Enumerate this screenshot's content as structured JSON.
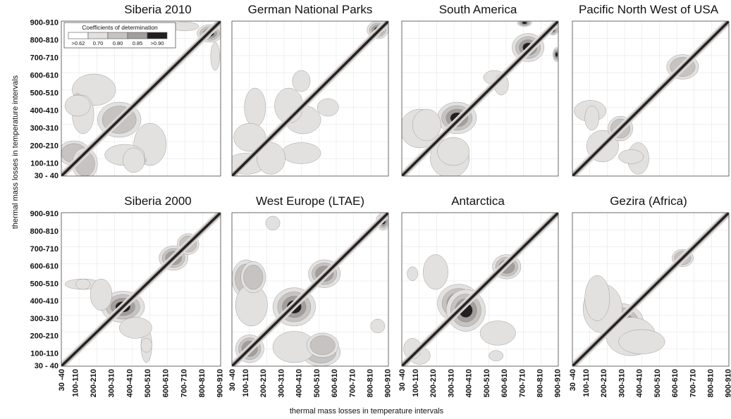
{
  "figure": {
    "ylabel": "thermal mass losses in temperature intervals",
    "xlabel": "thermal mass losses in temperature intervals"
  },
  "legend": {
    "title": "Coefficients of determination",
    "labels": [
      ">0.62",
      "0.70",
      "0.80",
      "0.85",
      ">0.90"
    ],
    "colors": [
      "#ffffff",
      "#e3e1df",
      "#c6c3c1",
      "#a19e9c",
      "#231f20"
    ]
  },
  "chart_data": {
    "type": "heatmap",
    "y_ticks": [
      "900-910",
      "800-810",
      "700-710",
      "600-610",
      "500-510",
      "400-410",
      "300-310",
      "200-210",
      "100-110",
      "30 - 40"
    ],
    "x_ticks": [
      "30 -40",
      "100-110",
      "200-210",
      "300-310",
      "400-410",
      "500-510",
      "600-610",
      "700-710",
      "800-810",
      "900-910"
    ],
    "x_range": [
      30,
      910
    ],
    "y_range": [
      30,
      910
    ],
    "grid": true,
    "panels": [
      {
        "title": "Siberia 2010",
        "blobs": [
          {
            "x": 100,
            "y": 160,
            "rx": 90,
            "ry": 70,
            "r": 0.83
          },
          {
            "x": 350,
            "y": 350,
            "rx": 120,
            "ry": 100,
            "r": 0.84
          },
          {
            "x": 210,
            "y": 520,
            "rx": 120,
            "ry": 90,
            "r": 0.74
          },
          {
            "x": 380,
            "y": 150,
            "rx": 110,
            "ry": 60,
            "r": 0.76
          },
          {
            "x": 470,
            "y": 120,
            "rx": 30,
            "ry": 25,
            "r": 0.9
          },
          {
            "x": 850,
            "y": 840,
            "rx": 70,
            "ry": 50,
            "r": 0.95
          },
          {
            "x": 710,
            "y": 880,
            "rx": 80,
            "ry": 25,
            "r": 0.72
          },
          {
            "x": 120,
            "y": 430,
            "rx": 70,
            "ry": 60,
            "r": 0.72
          }
        ]
      },
      {
        "title": "German National Parks",
        "blobs": [
          {
            "x": 110,
            "y": 100,
            "rx": 110,
            "ry": 60,
            "r": 0.78
          },
          {
            "x": 160,
            "y": 420,
            "rx": 60,
            "ry": 110,
            "r": 0.74
          },
          {
            "x": 250,
            "y": 130,
            "rx": 80,
            "ry": 90,
            "r": 0.76
          },
          {
            "x": 430,
            "y": 350,
            "rx": 100,
            "ry": 80,
            "r": 0.74
          },
          {
            "x": 850,
            "y": 860,
            "rx": 60,
            "ry": 50,
            "r": 0.95
          },
          {
            "x": 570,
            "y": 420,
            "rx": 60,
            "ry": 50,
            "r": 0.72
          }
        ]
      },
      {
        "title": "South America",
        "blobs": [
          {
            "x": 340,
            "y": 360,
            "rx": 110,
            "ry": 90,
            "r": 0.9
          },
          {
            "x": 130,
            "y": 300,
            "rx": 110,
            "ry": 110,
            "r": 0.78
          },
          {
            "x": 320,
            "y": 170,
            "rx": 90,
            "ry": 80,
            "r": 0.75
          },
          {
            "x": 740,
            "y": 760,
            "rx": 90,
            "ry": 80,
            "r": 0.93
          },
          {
            "x": 880,
            "y": 860,
            "rx": 30,
            "ry": 30,
            "r": 0.92
          },
          {
            "x": 900,
            "y": 720,
            "rx": 20,
            "ry": 40,
            "r": 0.92
          },
          {
            "x": 550,
            "y": 590,
            "rx": 60,
            "ry": 40,
            "r": 0.7
          }
        ]
      },
      {
        "title": "Pacific North West of USA",
        "blobs": [
          {
            "x": 200,
            "y": 200,
            "rx": 90,
            "ry": 90,
            "r": 0.75
          },
          {
            "x": 130,
            "y": 400,
            "rx": 90,
            "ry": 60,
            "r": 0.72
          },
          {
            "x": 360,
            "y": 140,
            "rx": 70,
            "ry": 40,
            "r": 0.72
          },
          {
            "x": 650,
            "y": 650,
            "rx": 90,
            "ry": 70,
            "r": 0.82
          },
          {
            "x": 300,
            "y": 300,
            "rx": 70,
            "ry": 70,
            "r": 0.8
          }
        ]
      },
      {
        "title": "Siberia 2000",
        "blobs": [
          {
            "x": 370,
            "y": 370,
            "rx": 120,
            "ry": 90,
            "r": 0.9
          },
          {
            "x": 150,
            "y": 500,
            "rx": 100,
            "ry": 30,
            "r": 0.75
          },
          {
            "x": 250,
            "y": 440,
            "rx": 60,
            "ry": 90,
            "r": 0.74
          },
          {
            "x": 500,
            "y": 150,
            "rx": 30,
            "ry": 40,
            "r": 0.72
          },
          {
            "x": 650,
            "y": 650,
            "rx": 80,
            "ry": 70,
            "r": 0.88
          },
          {
            "x": 730,
            "y": 730,
            "rx": 60,
            "ry": 60,
            "r": 0.8
          }
        ]
      },
      {
        "title": "West Europe (LTAE)",
        "blobs": [
          {
            "x": 380,
            "y": 370,
            "rx": 120,
            "ry": 110,
            "r": 0.92
          },
          {
            "x": 110,
            "y": 530,
            "rx": 80,
            "ry": 110,
            "r": 0.83
          },
          {
            "x": 140,
            "y": 380,
            "rx": 90,
            "ry": 120,
            "r": 0.74
          },
          {
            "x": 550,
            "y": 560,
            "rx": 90,
            "ry": 80,
            "r": 0.88
          },
          {
            "x": 540,
            "y": 150,
            "rx": 90,
            "ry": 70,
            "r": 0.83
          },
          {
            "x": 880,
            "y": 860,
            "rx": 40,
            "ry": 50,
            "r": 0.94
          },
          {
            "x": 260,
            "y": 850,
            "rx": 40,
            "ry": 40,
            "r": 0.72
          },
          {
            "x": 130,
            "y": 130,
            "rx": 80,
            "ry": 80,
            "r": 0.86
          }
        ]
      },
      {
        "title": "Antarctica",
        "blobs": [
          {
            "x": 350,
            "y": 390,
            "rx": 120,
            "ry": 110,
            "r": 0.94
          },
          {
            "x": 570,
            "y": 220,
            "rx": 100,
            "ry": 70,
            "r": 0.74
          },
          {
            "x": 620,
            "y": 600,
            "rx": 80,
            "ry": 70,
            "r": 0.86
          },
          {
            "x": 90,
            "y": 560,
            "rx": 30,
            "ry": 40,
            "r": 0.72
          },
          {
            "x": 130,
            "y": 90,
            "rx": 60,
            "ry": 50,
            "r": 0.74
          }
        ]
      },
      {
        "title": "Gezira (Africa)",
        "blobs": [
          {
            "x": 300,
            "y": 280,
            "rx": 130,
            "ry": 110,
            "r": 0.9
          },
          {
            "x": 200,
            "y": 360,
            "rx": 110,
            "ry": 140,
            "r": 0.76
          },
          {
            "x": 420,
            "y": 170,
            "rx": 130,
            "ry": 70,
            "r": 0.76
          },
          {
            "x": 900,
            "y": 900,
            "rx": 18,
            "ry": 18,
            "r": 0.97
          },
          {
            "x": 650,
            "y": 650,
            "rx": 60,
            "ry": 50,
            "r": 0.8
          }
        ]
      }
    ]
  }
}
